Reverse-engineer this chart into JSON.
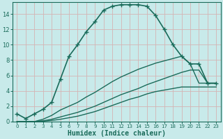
{
  "xlabel": "Humidex (Indice chaleur)",
  "bg_color": "#c8eaea",
  "grid_color": "#d4b4b4",
  "line_color": "#1a6b5a",
  "xlim": [
    -0.5,
    23.5
  ],
  "ylim": [
    0,
    15.5
  ],
  "yticks": [
    0,
    2,
    4,
    6,
    8,
    10,
    12,
    14
  ],
  "xticks": [
    0,
    1,
    2,
    3,
    4,
    5,
    6,
    7,
    8,
    9,
    10,
    11,
    12,
    13,
    14,
    15,
    16,
    17,
    18,
    19,
    20,
    21,
    22,
    23
  ],
  "series": [
    {
      "x": [
        0,
        1,
        2,
        3,
        4,
        5,
        6,
        7,
        8,
        9,
        10,
        11,
        12,
        13,
        14,
        15,
        16,
        17,
        18,
        19,
        20,
        21,
        22,
        23
      ],
      "y": [
        1,
        0.4,
        1,
        1.6,
        2.5,
        5.5,
        8.5,
        10,
        11.7,
        13,
        14.5,
        15,
        15.2,
        15.2,
        15.2,
        15,
        13.8,
        12,
        10,
        8.5,
        7.5,
        7.5,
        5.0,
        5.0
      ],
      "marker": "+",
      "markersize": 4,
      "linewidth": 1.2,
      "has_marker": true
    },
    {
      "x": [
        0,
        1,
        2,
        3,
        4,
        5,
        6,
        7,
        8,
        9,
        10,
        11,
        12,
        13,
        14,
        15,
        16,
        17,
        18,
        19,
        20,
        21,
        22,
        23
      ],
      "y": [
        0,
        0,
        0,
        0.3,
        0.8,
        1.5,
        2.0,
        2.5,
        3.2,
        3.8,
        4.5,
        5.2,
        5.8,
        6.3,
        6.8,
        7.2,
        7.6,
        7.9,
        8.2,
        8.5,
        7.5,
        5.0,
        5.0,
        5.0
      ],
      "marker": null,
      "markersize": 0,
      "linewidth": 1.0,
      "has_marker": false
    },
    {
      "x": [
        0,
        1,
        2,
        3,
        4,
        5,
        6,
        7,
        8,
        9,
        10,
        11,
        12,
        13,
        14,
        15,
        16,
        17,
        18,
        19,
        20,
        21,
        22,
        23
      ],
      "y": [
        0,
        0,
        0,
        0.1,
        0.3,
        0.6,
        0.9,
        1.2,
        1.6,
        2.0,
        2.5,
        3.0,
        3.5,
        3.9,
        4.3,
        4.8,
        5.2,
        5.6,
        6.0,
        6.4,
        6.7,
        6.7,
        5.0,
        5.0
      ],
      "marker": null,
      "markersize": 0,
      "linewidth": 1.0,
      "has_marker": false
    },
    {
      "x": [
        0,
        1,
        2,
        3,
        4,
        5,
        6,
        7,
        8,
        9,
        10,
        11,
        12,
        13,
        14,
        15,
        16,
        17,
        18,
        19,
        20,
        21,
        22,
        23
      ],
      "y": [
        0,
        0,
        0,
        0.05,
        0.15,
        0.3,
        0.5,
        0.7,
        1.0,
        1.3,
        1.7,
        2.1,
        2.5,
        2.9,
        3.2,
        3.6,
        3.9,
        4.1,
        4.3,
        4.5,
        4.5,
        4.5,
        4.5,
        4.5
      ],
      "marker": null,
      "markersize": 0,
      "linewidth": 1.0,
      "has_marker": false
    }
  ]
}
